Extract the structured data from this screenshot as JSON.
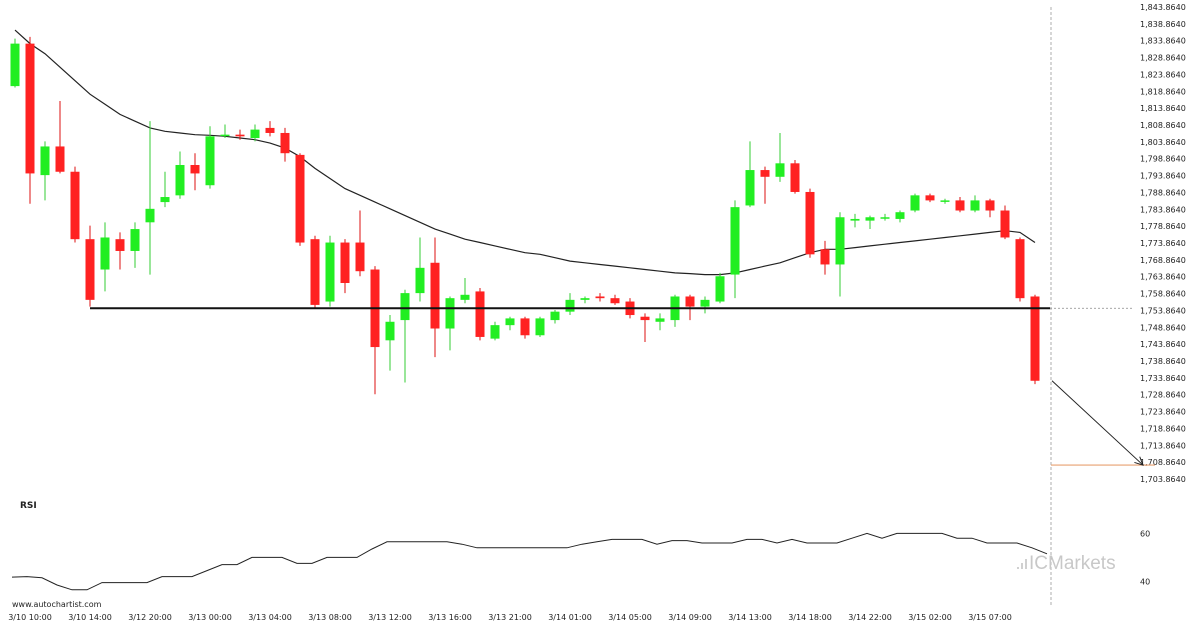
{
  "source": "www.autochartist.com",
  "brand": {
    "prefix": "IC",
    "suffix": "Markets"
  },
  "colors": {
    "up": "#22ee22",
    "down": "#ff2222",
    "wick_up": "#33cc33",
    "wick_down": "#dd1111",
    "line": "#222222",
    "target": "#e8a070",
    "indicator": "#222222"
  },
  "chart_data": [
    {
      "type": "candlestick",
      "xlabels": [
        "3/10 10:00",
        "3/10 14:00",
        "3/12 20:00",
        "3/13 00:00",
        "3/13 04:00",
        "3/13 08:00",
        "3/13 12:00",
        "3/13 16:00",
        "3/13 21:00",
        "3/14 01:00",
        "3/14 05:00",
        "3/14 09:00",
        "3/14 13:00",
        "3/14 18:00",
        "3/14 22:00",
        "3/15 02:00",
        "3/15 07:00"
      ],
      "xlabel_index": [
        1,
        5,
        9,
        13,
        17,
        21,
        25,
        29,
        33,
        37,
        41,
        45,
        49,
        53,
        57,
        61,
        65
      ],
      "ylim": [
        1703.864,
        1843.864
      ],
      "yticks": [
        1703.864,
        1708.864,
        1713.864,
        1718.864,
        1723.864,
        1728.864,
        1733.864,
        1738.864,
        1743.864,
        1748.864,
        1753.864,
        1758.864,
        1763.864,
        1768.864,
        1773.864,
        1778.864,
        1783.864,
        1788.864,
        1793.864,
        1798.864,
        1803.864,
        1808.864,
        1813.864,
        1818.864,
        1823.864,
        1828.864,
        1833.864,
        1838.864,
        1843.864
      ],
      "ytick_labels": [
        "1,703.8640",
        "1,708.8640",
        "1,713.8640",
        "1,718.8640",
        "1,723.8640",
        "1,728.8640",
        "1,733.8640",
        "1,738.8640",
        "1,743.8640",
        "1,748.8640",
        "1,753.8640",
        "1,758.8640",
        "1,763.8640",
        "1,768.8640",
        "1,773.8640",
        "1,778.8640",
        "1,783.8640",
        "1,788.8640",
        "1,793.8640",
        "1,798.8640",
        "1,803.8640",
        "1,808.8640",
        "1,813.8640",
        "1,818.8640",
        "1,823.8640",
        "1,828.8640",
        "1,833.8640",
        "1,838.8640",
        "1,843.8640"
      ],
      "candles": [
        [
          1820.4,
          1833.0,
          1834.5,
          1820.0
        ],
        [
          1833.0,
          1794.5,
          1835.0,
          1785.5
        ],
        [
          1794.0,
          1802.5,
          1804.0,
          1786.5
        ],
        [
          1802.5,
          1795.0,
          1816.0,
          1794.5
        ],
        [
          1795.0,
          1775.0,
          1796.5,
          1774.0
        ],
        [
          1775.0,
          1757.0,
          1779.0,
          1755.0
        ],
        [
          1766.0,
          1775.5,
          1780.0,
          1759.5
        ],
        [
          1775.0,
          1771.5,
          1777.0,
          1766.0
        ],
        [
          1771.5,
          1778.0,
          1780.0,
          1766.5
        ],
        [
          1780.0,
          1784.0,
          1810.0,
          1764.5
        ],
        [
          1786.0,
          1787.5,
          1795.0,
          1784.5
        ],
        [
          1788.0,
          1797.0,
          1801.0,
          1787.0
        ],
        [
          1797.0,
          1794.5,
          1800.5,
          1789.5
        ],
        [
          1791.0,
          1805.5,
          1808.5,
          1790.0
        ],
        [
          1806.0,
          1806.0,
          1809.0,
          1805.0
        ],
        [
          1806.0,
          1805.5,
          1807.5,
          1804.5
        ],
        [
          1805.0,
          1807.5,
          1809.0,
          1804.0
        ],
        [
          1808.0,
          1806.5,
          1810.0,
          1805.5
        ],
        [
          1806.5,
          1800.5,
          1808.0,
          1798.0
        ],
        [
          1800.0,
          1774.0,
          1800.5,
          1773.0
        ],
        [
          1775.0,
          1755.5,
          1776.0,
          1754.5
        ],
        [
          1756.5,
          1774.0,
          1776.0,
          1755.0
        ],
        [
          1774.0,
          1762.0,
          1775.0,
          1759.0
        ],
        [
          1774.0,
          1765.5,
          1783.5,
          1764.0
        ],
        [
          1766.0,
          1743.0,
          1767.0,
          1729.0
        ],
        [
          1745.0,
          1750.5,
          1752.5,
          1736.0
        ],
        [
          1751.0,
          1759.0,
          1760.0,
          1732.5
        ],
        [
          1759.0,
          1766.5,
          1775.5,
          1756.5
        ],
        [
          1768.0,
          1748.5,
          1775.5,
          1740.0
        ],
        [
          1748.5,
          1757.5,
          1758.0,
          1742.0
        ],
        [
          1757.0,
          1758.5,
          1763.5,
          1756.0
        ],
        [
          1759.5,
          1746.0,
          1760.5,
          1745.0
        ],
        [
          1745.5,
          1749.5,
          1750.5,
          1745.0
        ],
        [
          1749.5,
          1751.5,
          1752.0,
          1748.0
        ],
        [
          1751.5,
          1746.5,
          1752.0,
          1745.5
        ],
        [
          1746.5,
          1751.5,
          1752.0,
          1746.0
        ],
        [
          1751.0,
          1753.5,
          1754.0,
          1750.0
        ],
        [
          1753.5,
          1757.0,
          1759.0,
          1752.5
        ],
        [
          1757.0,
          1757.5,
          1758.0,
          1756.0
        ],
        [
          1758.0,
          1757.5,
          1759.0,
          1756.5
        ],
        [
          1757.5,
          1756.0,
          1758.5,
          1755.5
        ],
        [
          1756.5,
          1752.5,
          1757.5,
          1751.5
        ],
        [
          1752.0,
          1751.0,
          1753.0,
          1744.5
        ],
        [
          1750.5,
          1751.5,
          1753.0,
          1748.0
        ],
        [
          1751.0,
          1758.0,
          1758.5,
          1749.0
        ],
        [
          1758.0,
          1755.0,
          1758.5,
          1751.0
        ],
        [
          1755.0,
          1757.0,
          1758.0,
          1753.0
        ],
        [
          1756.5,
          1764.0,
          1765.0,
          1756.0
        ],
        [
          1764.5,
          1784.5,
          1786.5,
          1757.5
        ],
        [
          1785.0,
          1795.5,
          1804.0,
          1784.5
        ],
        [
          1795.5,
          1793.5,
          1796.5,
          1785.5
        ],
        [
          1793.5,
          1797.5,
          1806.5,
          1792.0
        ],
        [
          1797.5,
          1789.0,
          1798.5,
          1788.5
        ],
        [
          1789.0,
          1770.5,
          1790.0,
          1769.5
        ],
        [
          1772.0,
          1767.5,
          1774.5,
          1764.5
        ],
        [
          1767.5,
          1781.5,
          1783.0,
          1758.0
        ],
        [
          1780.5,
          1781.0,
          1782.5,
          1778.5
        ],
        [
          1780.5,
          1781.5,
          1782.0,
          1778.0
        ],
        [
          1781.5,
          1781.5,
          1782.5,
          1780.5
        ],
        [
          1781.0,
          1783.0,
          1783.5,
          1780.0
        ],
        [
          1783.5,
          1788.0,
          1788.5,
          1783.0
        ],
        [
          1788.0,
          1786.5,
          1788.5,
          1786.0
        ],
        [
          1786.5,
          1786.5,
          1787.0,
          1785.5
        ],
        [
          1786.5,
          1783.5,
          1787.5,
          1783.0
        ],
        [
          1783.5,
          1786.5,
          1788.0,
          1783.0
        ],
        [
          1786.5,
          1783.5,
          1787.0,
          1781.5
        ],
        [
          1783.5,
          1775.5,
          1785.0,
          1775.0
        ],
        [
          1775.0,
          1757.5,
          1775.5,
          1756.5
        ],
        [
          1758.0,
          1733.0,
          1758.5,
          1732.0
        ]
      ],
      "moving_average": [
        1837.0,
        1833.0,
        1830.0,
        1826.0,
        1822.0,
        1818.0,
        1815.0,
        1812.0,
        1810.0,
        1808.0,
        1807.0,
        1806.5,
        1806.0,
        1805.8,
        1805.5,
        1805.0,
        1804.5,
        1803.5,
        1802.0,
        1799.5,
        1796.0,
        1793.0,
        1790.0,
        1788.0,
        1786.0,
        1784.0,
        1782.0,
        1780.0,
        1778.0,
        1776.5,
        1775.0,
        1774.0,
        1773.0,
        1772.0,
        1771.0,
        1770.5,
        1769.5,
        1768.5,
        1768.0,
        1767.5,
        1767.0,
        1766.5,
        1766.0,
        1765.5,
        1765.0,
        1764.8,
        1764.5,
        1764.5,
        1765.0,
        1766.0,
        1767.0,
        1768.0,
        1769.5,
        1771.0,
        1772.0,
        1772.0,
        1772.5,
        1773.0,
        1773.5,
        1774.0,
        1774.5,
        1775.0,
        1775.5,
        1776.0,
        1776.5,
        1777.0,
        1777.5,
        1777.0,
        1774.0
      ],
      "support_level": 1754.5,
      "support_from_index": 5,
      "target_level": 1708.0,
      "arrow_from": [
        69,
        1733.0
      ],
      "arrow_to": [
        75,
        1708.0
      ],
      "current_time_index": 69
    },
    {
      "type": "line",
      "title": "RSI",
      "ylim": [
        36,
        66
      ],
      "yticks": [
        40,
        60
      ],
      "values": [
        41.8,
        42.0,
        41.5,
        38.5,
        36.5,
        36.5,
        39.5,
        39.5,
        39.5,
        39.5,
        42.0,
        42.0,
        42.0,
        44.5,
        47.0,
        47.0,
        50.0,
        50.0,
        50.0,
        47.5,
        47.5,
        50.0,
        50.0,
        50.0,
        53.5,
        56.5,
        56.5,
        56.5,
        56.5,
        56.5,
        55.5,
        54.0,
        54.0,
        54.0,
        54.0,
        54.0,
        54.0,
        54.0,
        55.5,
        56.5,
        57.5,
        57.5,
        57.5,
        55.5,
        57.0,
        57.0,
        56.0,
        56.0,
        56.0,
        57.5,
        57.5,
        56.0,
        57.5,
        56.0,
        56.0,
        56.0,
        58.0,
        60.0,
        58.0,
        60.0,
        60.0,
        60.0,
        60.0,
        58.0,
        58.0,
        56.0,
        56.0,
        56.0,
        54.0,
        51.5
      ]
    }
  ]
}
